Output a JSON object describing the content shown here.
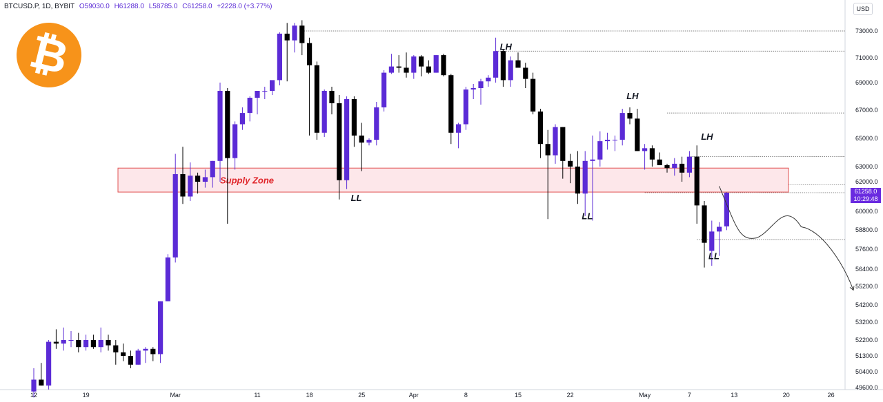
{
  "header": {
    "symbol": "BTCUSD.P, 1D, BYBIT",
    "open": "O59030.0",
    "high": "H61288.0",
    "low": "L58785.0",
    "close": "C61258.0",
    "change": "+2228.0 (+3.77%)"
  },
  "currency": "USD",
  "logo_icon": "bitcoin-logo-icon",
  "last_price": {
    "value": "61258.0",
    "countdown": "10:29:48"
  },
  "colors": {
    "up": "#5b2bd6",
    "down": "#000000",
    "zone_border": "#e05050",
    "zone_fill": "#fde7ea",
    "zone_text": "#e0262b",
    "badge": "#6a2be0"
  },
  "chart_data": {
    "type": "candlestick",
    "x_ticks": [
      "12",
      "19",
      "Mar",
      "11",
      "18",
      "25",
      "Apr",
      "8",
      "15",
      "22",
      "May",
      "7",
      "13",
      "20",
      "26"
    ],
    "y_ticks": [
      "73000.0",
      "71000.0",
      "69000.0",
      "67000.0",
      "65000.0",
      "63000.0",
      "62000.0",
      "60000.0",
      "58800.0",
      "57600.0",
      "56400.0",
      "55200.0",
      "54200.0",
      "53200.0",
      "52200.0",
      "51300.0",
      "50400.0",
      "49600.0"
    ],
    "candles": [
      {
        "o": 49400,
        "h": 50600,
        "l": 49100,
        "c": 50000
      },
      {
        "o": 50000,
        "h": 50900,
        "l": 49700,
        "c": 49700
      },
      {
        "o": 49700,
        "h": 52200,
        "l": 49500,
        "c": 52100
      },
      {
        "o": 52100,
        "h": 52800,
        "l": 51700,
        "c": 52000
      },
      {
        "o": 52000,
        "h": 52900,
        "l": 51600,
        "c": 52200
      },
      {
        "o": 52200,
        "h": 52700,
        "l": 51800,
        "c": 52200
      },
      {
        "o": 52200,
        "h": 52600,
        "l": 51500,
        "c": 51800
      },
      {
        "o": 51800,
        "h": 52500,
        "l": 51600,
        "c": 52200
      },
      {
        "o": 52200,
        "h": 52500,
        "l": 51700,
        "c": 51800
      },
      {
        "o": 51800,
        "h": 52900,
        "l": 51500,
        "c": 52200
      },
      {
        "o": 52200,
        "h": 52500,
        "l": 51600,
        "c": 51900
      },
      {
        "o": 51900,
        "h": 52200,
        "l": 50800,
        "c": 51500
      },
      {
        "o": 51500,
        "h": 52000,
        "l": 51000,
        "c": 51300
      },
      {
        "o": 51300,
        "h": 51600,
        "l": 50600,
        "c": 50800
      },
      {
        "o": 50800,
        "h": 51700,
        "l": 50800,
        "c": 51600
      },
      {
        "o": 51600,
        "h": 51800,
        "l": 50900,
        "c": 51700
      },
      {
        "o": 51700,
        "h": 51800,
        "l": 51000,
        "c": 51400
      },
      {
        "o": 51400,
        "h": 54400,
        "l": 50900,
        "c": 54400
      },
      {
        "o": 54400,
        "h": 57300,
        "l": 54400,
        "c": 57100
      },
      {
        "o": 57100,
        "h": 63900,
        "l": 56800,
        "c": 62500
      },
      {
        "o": 62500,
        "h": 64400,
        "l": 60500,
        "c": 61000
      },
      {
        "o": 61000,
        "h": 63300,
        "l": 60700,
        "c": 62400
      },
      {
        "o": 62400,
        "h": 62600,
        "l": 61200,
        "c": 62000
      },
      {
        "o": 62000,
        "h": 62800,
        "l": 61600,
        "c": 62300
      },
      {
        "o": 62300,
        "h": 63400,
        "l": 61600,
        "c": 63400
      },
      {
        "o": 63400,
        "h": 69000,
        "l": 62000,
        "c": 68400
      },
      {
        "o": 68400,
        "h": 68600,
        "l": 59200,
        "c": 63600
      },
      {
        "o": 63600,
        "h": 66200,
        "l": 62800,
        "c": 66000
      },
      {
        "o": 66000,
        "h": 67200,
        "l": 65600,
        "c": 66800
      },
      {
        "o": 66800,
        "h": 68000,
        "l": 66200,
        "c": 67900
      },
      {
        "o": 67900,
        "h": 68400,
        "l": 66700,
        "c": 68400
      },
      {
        "o": 68400,
        "h": 68700,
        "l": 67800,
        "c": 68400
      },
      {
        "o": 68400,
        "h": 69100,
        "l": 68100,
        "c": 69200
      },
      {
        "o": 69200,
        "h": 72900,
        "l": 68800,
        "c": 72800
      },
      {
        "o": 72800,
        "h": 73600,
        "l": 69100,
        "c": 72300
      },
      {
        "o": 72300,
        "h": 73600,
        "l": 71400,
        "c": 73400
      },
      {
        "o": 73400,
        "h": 73800,
        "l": 71200,
        "c": 72100
      },
      {
        "o": 72100,
        "h": 72500,
        "l": 65200,
        "c": 70400
      },
      {
        "o": 70400,
        "h": 70700,
        "l": 64900,
        "c": 65400
      },
      {
        "o": 65400,
        "h": 68500,
        "l": 65100,
        "c": 68400
      },
      {
        "o": 68400,
        "h": 68700,
        "l": 66700,
        "c": 67500
      },
      {
        "o": 67500,
        "h": 68100,
        "l": 60800,
        "c": 62100
      },
      {
        "o": 62100,
        "h": 68000,
        "l": 61500,
        "c": 67800
      },
      {
        "o": 67800,
        "h": 68000,
        "l": 64400,
        "c": 65200
      },
      {
        "o": 65200,
        "h": 66100,
        "l": 62700,
        "c": 64700
      },
      {
        "o": 64700,
        "h": 65000,
        "l": 64500,
        "c": 64900
      },
      {
        "o": 64900,
        "h": 67600,
        "l": 64500,
        "c": 67200
      },
      {
        "o": 67200,
        "h": 70000,
        "l": 66900,
        "c": 69800
      },
      {
        "o": 69800,
        "h": 71300,
        "l": 69700,
        "c": 70300
      },
      {
        "o": 70300,
        "h": 71200,
        "l": 69800,
        "c": 70200
      },
      {
        "o": 70200,
        "h": 71400,
        "l": 69400,
        "c": 69800
      },
      {
        "o": 69800,
        "h": 71200,
        "l": 69300,
        "c": 71100
      },
      {
        "o": 71100,
        "h": 71200,
        "l": 69500,
        "c": 70300
      },
      {
        "o": 70300,
        "h": 70800,
        "l": 69700,
        "c": 69800
      },
      {
        "o": 69800,
        "h": 71200,
        "l": 69800,
        "c": 71200
      },
      {
        "o": 71200,
        "h": 71300,
        "l": 69500,
        "c": 69600
      },
      {
        "o": 69600,
        "h": 69700,
        "l": 64600,
        "c": 65400
      },
      {
        "o": 65400,
        "h": 66100,
        "l": 64300,
        "c": 66000
      },
      {
        "o": 66000,
        "h": 68700,
        "l": 65600,
        "c": 68500
      },
      {
        "o": 68500,
        "h": 68900,
        "l": 67800,
        "c": 68600
      },
      {
        "o": 68600,
        "h": 69300,
        "l": 67400,
        "c": 69100
      },
      {
        "o": 69100,
        "h": 69600,
        "l": 68700,
        "c": 69400
      },
      {
        "o": 69400,
        "h": 72500,
        "l": 69000,
        "c": 71500
      },
      {
        "o": 71500,
        "h": 71600,
        "l": 68700,
        "c": 69200
      },
      {
        "o": 69200,
        "h": 71100,
        "l": 68700,
        "c": 70800
      },
      {
        "o": 70800,
        "h": 71400,
        "l": 70400,
        "c": 70200
      },
      {
        "o": 70200,
        "h": 70600,
        "l": 68600,
        "c": 69300
      },
      {
        "o": 69300,
        "h": 69800,
        "l": 66700,
        "c": 66900
      },
      {
        "o": 66900,
        "h": 67100,
        "l": 63600,
        "c": 64600
      },
      {
        "o": 64600,
        "h": 65600,
        "l": 59500,
        "c": 63800
      },
      {
        "o": 63800,
        "h": 66000,
        "l": 63200,
        "c": 65800
      },
      {
        "o": 65800,
        "h": 65800,
        "l": 62200,
        "c": 63400
      },
      {
        "o": 63400,
        "h": 63900,
        "l": 61900,
        "c": 63000
      },
      {
        "o": 63000,
        "h": 64100,
        "l": 60500,
        "c": 61200
      },
      {
        "o": 61200,
        "h": 64100,
        "l": 59700,
        "c": 63400
      },
      {
        "o": 63400,
        "h": 65200,
        "l": 59400,
        "c": 63500
      },
      {
        "o": 63500,
        "h": 65500,
        "l": 63000,
        "c": 64800
      },
      {
        "o": 64800,
        "h": 65400,
        "l": 64200,
        "c": 64900
      },
      {
        "o": 64900,
        "h": 65200,
        "l": 64100,
        "c": 64900
      },
      {
        "o": 64900,
        "h": 67100,
        "l": 64500,
        "c": 66800
      },
      {
        "o": 66800,
        "h": 67200,
        "l": 66000,
        "c": 66400
      },
      {
        "o": 66400,
        "h": 67100,
        "l": 64100,
        "c": 64100
      },
      {
        "o": 64100,
        "h": 64600,
        "l": 62800,
        "c": 64300
      },
      {
        "o": 64300,
        "h": 64500,
        "l": 63000,
        "c": 63500
      },
      {
        "o": 63500,
        "h": 64000,
        "l": 63100,
        "c": 63100
      },
      {
        "o": 63100,
        "h": 63200,
        "l": 62600,
        "c": 62900
      },
      {
        "o": 62900,
        "h": 63600,
        "l": 62400,
        "c": 63200
      },
      {
        "o": 63200,
        "h": 63700,
        "l": 62000,
        "c": 62600
      },
      {
        "o": 62600,
        "h": 64100,
        "l": 62300,
        "c": 63700
      },
      {
        "o": 63700,
        "h": 64500,
        "l": 59200,
        "c": 60400
      },
      {
        "o": 60400,
        "h": 60700,
        "l": 56500,
        "c": 58000
      },
      {
        "o": 57500,
        "h": 59400,
        "l": 56600,
        "c": 58700
      },
      {
        "o": 58700,
        "h": 59300,
        "l": 57200,
        "c": 59000
      },
      {
        "o": 59030,
        "h": 61288,
        "l": 58785,
        "c": 61258
      }
    ],
    "reference_lines": [
      73000.0,
      71500.0,
      66800.0,
      63700.0,
      61800.0,
      61258.0,
      58200.0
    ],
    "zone": {
      "label": "Supply Zone",
      "top": 62900,
      "bottom": 61300
    },
    "annotations": [
      {
        "text": "LH",
        "index": 62,
        "price": 71600
      },
      {
        "text": "LH",
        "index": 79,
        "price": 67800
      },
      {
        "text": "LH",
        "index": 89,
        "price": 64900
      },
      {
        "text": "LL",
        "index": 42,
        "price": 60700
      },
      {
        "text": "LL",
        "index": 73,
        "price": 59500
      },
      {
        "text": "LL",
        "index": 90,
        "price": 57000
      }
    ],
    "projection": [
      [
        92,
        61700
      ],
      [
        97,
        58300
      ],
      [
        103,
        59000
      ],
      [
        110,
        55000
      ]
    ]
  }
}
